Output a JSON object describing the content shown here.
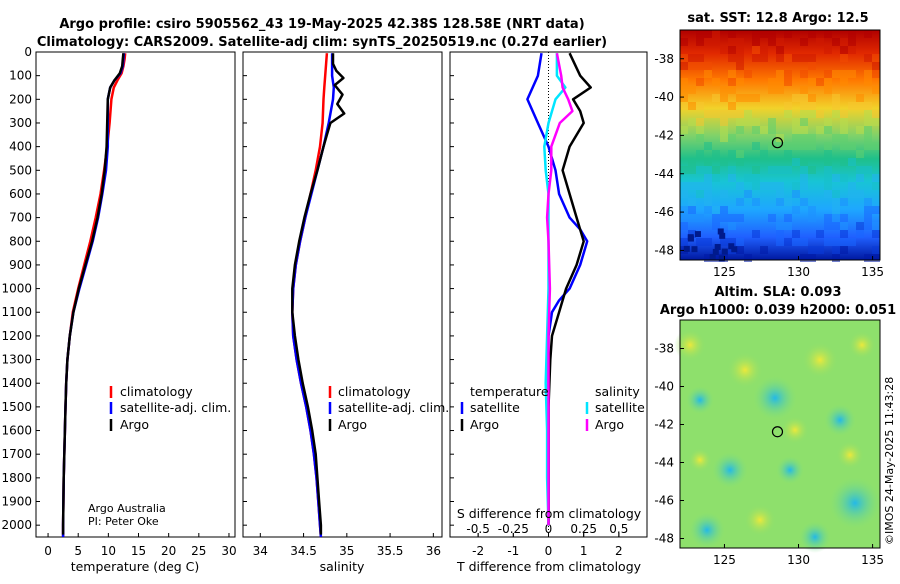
{
  "title": {
    "line1": "Argo profile: csiro 5905562_43 19-May-2025 42.38S 128.58E (NRT data)",
    "line2": "Climatology: CARS2009. Satellite-adj clim: synTS_20250519.nc (0.27d earlier)"
  },
  "credit": {
    "line1": "Argo Australia",
    "line2": "PI: Peter Oke"
  },
  "copyright": "©IMOS 24-May-2025 11:43:28",
  "colors": {
    "climatology": "#ff0000",
    "satellite": "#0000ff",
    "argo": "#000000",
    "sal_satellite": "#00e5ff",
    "sal_argo": "#ff00ff"
  },
  "depth_ticks": [
    "0",
    "100",
    "200",
    "300",
    "400",
    "500",
    "600",
    "700",
    "800",
    "900",
    "1000",
    "1100",
    "1200",
    "1300",
    "1400",
    "1500",
    "1600",
    "1700",
    "1800",
    "1900",
    "2000"
  ],
  "chart_data": [
    {
      "type": "line",
      "xlabel": "temperature (deg C)",
      "ylabel": "depth",
      "xlim": [
        -2,
        31
      ],
      "ylim": [
        0,
        2050
      ],
      "x_ticks": [
        "0",
        "5",
        "10",
        "15",
        "20",
        "25",
        "30"
      ],
      "legend": [
        "climatology",
        "satellite-adj. clim.",
        "Argo"
      ],
      "series": [
        {
          "name": "climatology",
          "depth": [
            5,
            30,
            60,
            90,
            120,
            150,
            200,
            300,
            400,
            500,
            600,
            700,
            800,
            900,
            1000,
            1100,
            1200,
            1300,
            1400,
            1500,
            1600,
            1700,
            1800,
            1900,
            2000,
            2050
          ],
          "values": [
            12.8,
            12.7,
            12.5,
            12.2,
            11.5,
            10.9,
            10.5,
            10.2,
            9.8,
            9.3,
            8.7,
            7.9,
            7.0,
            6.0,
            5.0,
            4.1,
            3.6,
            3.2,
            3.0,
            2.9,
            2.8,
            2.7,
            2.6,
            2.55,
            2.5,
            2.5
          ]
        },
        {
          "name": "satellite-adj. clim.",
          "depth": [
            5,
            30,
            60,
            90,
            120,
            150,
            200,
            300,
            400,
            500,
            600,
            700,
            800,
            900,
            1000,
            1100,
            1200,
            1300,
            1400,
            1500,
            1600,
            1700,
            1800,
            1900,
            2000,
            2050
          ],
          "values": [
            12.6,
            12.5,
            12.4,
            12.0,
            11.0,
            10.3,
            9.9,
            9.9,
            9.9,
            9.6,
            9.0,
            8.3,
            7.4,
            6.3,
            5.2,
            4.2,
            3.6,
            3.2,
            3.0,
            2.9,
            2.8,
            2.7,
            2.6,
            2.55,
            2.5,
            2.5
          ]
        },
        {
          "name": "Argo",
          "depth": [
            5,
            30,
            60,
            90,
            120,
            150,
            200,
            300,
            400,
            500,
            600,
            700,
            800,
            900,
            1000,
            1100,
            1200,
            1300,
            1400,
            1500,
            1600,
            1700,
            1800,
            1900,
            2000,
            2040
          ],
          "values": [
            12.5,
            12.4,
            12.3,
            11.9,
            11.0,
            10.3,
            9.9,
            9.8,
            9.7,
            9.4,
            8.9,
            8.2,
            7.3,
            6.2,
            5.1,
            4.2,
            3.6,
            3.2,
            3.0,
            2.9,
            2.8,
            2.7,
            2.6,
            2.55,
            2.5,
            2.5
          ]
        }
      ]
    },
    {
      "type": "line",
      "xlabel": "salinity",
      "ylabel": "depth",
      "xlim": [
        33.8,
        36.1
      ],
      "ylim": [
        0,
        2050
      ],
      "x_ticks": [
        "34",
        "34.5",
        "35",
        "35.5",
        "36"
      ],
      "legend": [
        "climatology",
        "satellite-adj. clim.",
        "Argo"
      ],
      "series": [
        {
          "name": "climatology",
          "depth": [
            5,
            50,
            100,
            150,
            200,
            300,
            400,
            500,
            600,
            700,
            800,
            900,
            1000,
            1100,
            1200,
            1300,
            1400,
            1500,
            1600,
            1700,
            1800,
            1900,
            2000,
            2050
          ],
          "values": [
            34.77,
            34.76,
            34.75,
            34.74,
            34.73,
            34.72,
            34.69,
            34.64,
            34.58,
            34.52,
            34.46,
            34.41,
            34.38,
            34.37,
            34.38,
            34.42,
            34.47,
            34.53,
            34.58,
            34.62,
            34.65,
            34.67,
            34.69,
            34.7
          ]
        },
        {
          "name": "satellite-adj. clim.",
          "depth": [
            5,
            50,
            100,
            150,
            200,
            300,
            400,
            500,
            600,
            700,
            800,
            900,
            1000,
            1100,
            1200,
            1300,
            1400,
            1500,
            1600,
            1700,
            1800,
            1900,
            2000,
            2050
          ],
          "values": [
            34.83,
            34.83,
            34.83,
            34.85,
            34.84,
            34.79,
            34.73,
            34.66,
            34.59,
            34.52,
            34.46,
            34.41,
            34.38,
            34.37,
            34.38,
            34.42,
            34.47,
            34.53,
            34.58,
            34.62,
            34.65,
            34.67,
            34.69,
            34.7
          ]
        },
        {
          "name": "Argo",
          "depth": [
            5,
            50,
            80,
            110,
            140,
            180,
            220,
            260,
            300,
            350,
            400,
            500,
            600,
            700,
            800,
            900,
            1000,
            1100,
            1200,
            1300,
            1400,
            1500,
            1600,
            1700,
            1800,
            1900,
            2000,
            2040
          ],
          "values": [
            34.84,
            34.84,
            34.88,
            34.96,
            34.86,
            34.95,
            34.89,
            34.97,
            34.81,
            34.77,
            34.73,
            34.66,
            34.58,
            34.51,
            34.45,
            34.4,
            34.37,
            34.37,
            34.4,
            34.44,
            34.49,
            34.55,
            34.6,
            34.64,
            34.66,
            34.68,
            34.7,
            34.7
          ]
        }
      ]
    },
    {
      "type": "line",
      "xlabel": "T difference from climatology",
      "x2label": "S difference from climatology",
      "ylabel": "depth",
      "xlim": [
        -2.8,
        2.8
      ],
      "ylim": [
        0,
        2050
      ],
      "x_ticks": [
        "-2",
        "-1",
        "0",
        "1",
        "2"
      ],
      "x2_ticks": [
        "-0.5",
        "-0.25",
        "0",
        "0.25",
        "0.5"
      ],
      "x2lim": [
        -0.7,
        0.7
      ],
      "legend_temperature": [
        "temperature",
        "satellite",
        "Argo"
      ],
      "legend_salinity": [
        "salinity",
        "satellite",
        "Argo"
      ],
      "series": [
        {
          "name": "T satellite",
          "axis": "T",
          "depth": [
            5,
            100,
            200,
            300,
            400,
            500,
            600,
            700,
            750,
            800,
            850,
            900,
            1000,
            1050,
            1100,
            1200,
            1300,
            1500,
            2000
          ],
          "values": [
            -0.2,
            -0.3,
            -0.6,
            -0.3,
            0.0,
            0.2,
            0.3,
            0.6,
            0.9,
            1.1,
            1.0,
            0.9,
            0.6,
            0.3,
            0.1,
            0.0,
            0.0,
            0.0,
            0.0
          ]
        },
        {
          "name": "T Argo",
          "axis": "T",
          "depth": [
            5,
            100,
            150,
            200,
            250,
            300,
            400,
            500,
            600,
            700,
            800,
            900,
            1000,
            1100,
            1200,
            1300,
            1500,
            2000
          ],
          "values": [
            0.6,
            0.9,
            1.2,
            0.7,
            0.9,
            1.0,
            0.6,
            0.4,
            0.6,
            0.8,
            1.0,
            0.8,
            0.5,
            0.3,
            0.1,
            0.05,
            0.0,
            0.0
          ]
        },
        {
          "name": "S satellite",
          "axis": "S",
          "depth": [
            5,
            100,
            150,
            200,
            300,
            400,
            500,
            600,
            800,
            1000,
            1200,
            1400,
            1600,
            1800,
            2000
          ],
          "values": [
            0.06,
            0.06,
            0.12,
            0.05,
            0.0,
            -0.03,
            -0.02,
            0.0,
            0.0,
            0.0,
            -0.01,
            -0.02,
            -0.01,
            -0.01,
            0.0
          ]
        },
        {
          "name": "S Argo",
          "axis": "S",
          "depth": [
            5,
            100,
            150,
            200,
            250,
            300,
            400,
            500,
            600,
            700,
            800,
            1000,
            1200,
            1400,
            1600,
            1800,
            2000
          ],
          "values": [
            0.06,
            0.09,
            0.1,
            0.14,
            0.17,
            0.08,
            0.02,
            0.02,
            0.0,
            -0.01,
            0.0,
            0.01,
            0.0,
            0.0,
            0.0,
            0.0,
            0.0
          ]
        }
      ]
    },
    {
      "type": "heatmap",
      "title": "sat. SST: 12.8 Argo: 12.5",
      "x_ticks": [
        "125",
        "130",
        "135"
      ],
      "y_ticks": [
        "-38",
        "-40",
        "-42",
        "-44",
        "-46",
        "-48"
      ],
      "xlim": [
        122,
        135.5
      ],
      "ylim": [
        -48.5,
        -36.5
      ],
      "marker": {
        "lon": 128.58,
        "lat": -42.38
      }
    },
    {
      "type": "heatmap",
      "title_line1": "Altim. SLA: 0.093",
      "title_line2": "Argo h1000: 0.039 h2000: 0.051",
      "x_ticks": [
        "125",
        "130",
        "135"
      ],
      "y_ticks": [
        "-38",
        "-40",
        "-42",
        "-44",
        "-46",
        "-48"
      ],
      "xlim": [
        122,
        135.5
      ],
      "ylim": [
        -48.5,
        -36.5
      ],
      "marker": {
        "lon": 128.58,
        "lat": -42.38
      }
    }
  ]
}
